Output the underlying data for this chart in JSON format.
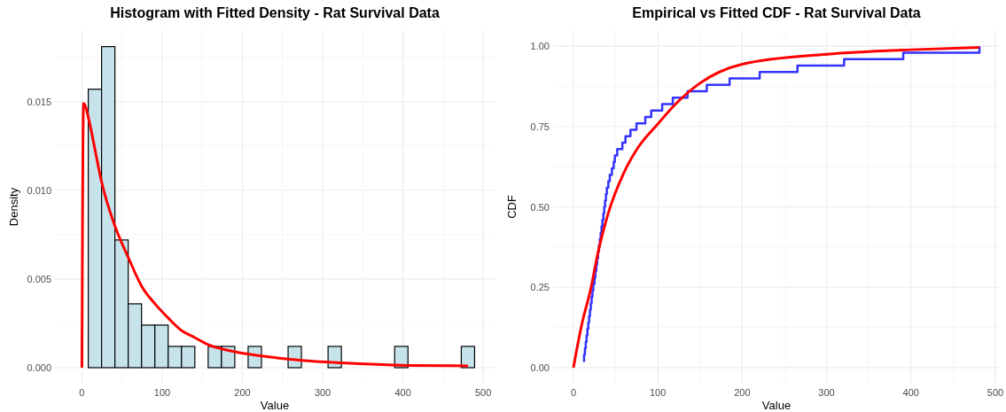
{
  "chart_data": [
    {
      "type": "histogram",
      "title": "Histogram with Fitted Density - Rat Survival Data",
      "xlabel": "Value",
      "ylabel": "Density",
      "grid": true,
      "xlim": [
        -33.6,
        514.2
      ],
      "ylim": [
        -0.0009,
        0.01903
      ],
      "xticks": [
        0,
        100,
        200,
        300,
        400,
        500
      ],
      "yticks": [
        {
          "value": 0,
          "label": "0.000"
        },
        {
          "value": 0.005,
          "label": "0.005"
        },
        {
          "value": 0.01,
          "label": "0.010"
        },
        {
          "value": 0.015,
          "label": "0.015"
        }
      ],
      "series": [
        {
          "color": "#c6e2eb",
          "bins": [
            -8.7,
            7.9,
            24.5,
            41.1,
            57.7,
            74.3,
            90.9,
            107.5,
            124.1,
            140.7,
            157.3,
            173.9,
            190.5,
            207.1,
            223.7,
            240.3,
            256.9,
            273.5,
            290.1,
            306.7,
            323.3,
            339.9,
            356.5,
            373.1,
            389.7,
            406.3,
            422.9,
            439.5,
            456.1,
            472.7,
            489.3
          ],
          "values": [
            0,
            0.0157,
            0.0181,
            0.0072,
            0.0036,
            0.0024,
            0.0024,
            0.0012,
            0.0012,
            0,
            0.0012,
            0.0012,
            0,
            0.0012,
            0,
            0,
            0.0012,
            0,
            0,
            0.0012,
            0,
            0,
            0,
            0,
            0.0012,
            0,
            0,
            0,
            0,
            0.0012
          ]
        },
        {
          "type": "line",
          "color": "#ff0000",
          "x": [
            0,
            2,
            10,
            16.7,
            24.4,
            41,
            57.9,
            74.4,
            91,
            107.5,
            124,
            140.6,
            157,
            190.6,
            224,
            273.6,
            323.6,
            406,
            481
          ],
          "values": [
            0,
            0.0149,
            0.0137,
            0.0122,
            0.0105,
            0.008,
            0.0062,
            0.0046,
            0.0036,
            0.0028,
            0.0021,
            0.0017,
            0.0013,
            0.0009,
            0.00066,
            0.00041,
            0.00027,
            0.00013,
            0.0001
          ]
        }
      ]
    },
    {
      "type": "step",
      "title": "Empirical vs Fitted CDF - Rat Survival Data",
      "xlabel": "Value",
      "ylabel": "CDF",
      "grid": true,
      "xlim": [
        -24.1,
        505.3
      ],
      "ylim": [
        -0.05,
        1.05
      ],
      "xticks": [
        0,
        100,
        200,
        300,
        400,
        500
      ],
      "yticks": [
        {
          "value": 0,
          "label": "0.00"
        },
        {
          "value": 0.25,
          "label": "0.25"
        },
        {
          "value": 0.5,
          "label": "0.50"
        },
        {
          "value": 0.75,
          "label": "0.75"
        },
        {
          "value": 1,
          "label": "1.00"
        }
      ],
      "series": [
        {
          "color": "#3333ff",
          "x": [
            11.6,
            12.6,
            13.6,
            14.6,
            15.6,
            16.6,
            17.6,
            18.6,
            19.6,
            20.6,
            21.6,
            22.6,
            23.6,
            25.0,
            26.0,
            27.1,
            28.1,
            29.2,
            30.2,
            31.3,
            32.3,
            33.4,
            34.4,
            35.5,
            36.5,
            37.5,
            38.6,
            39.6,
            41.4,
            43.1,
            45.6,
            47.7,
            49.1,
            51.9,
            58.0,
            61.7,
            67.6,
            74.7,
            85.2,
            92.2,
            105.2,
            117.8,
            135.3,
            158.1,
            185.1,
            220.8,
            265.5,
            320.8,
            390.9,
            481.2
          ],
          "values": [
            0.02,
            0.04,
            0.06,
            0.08,
            0.1,
            0.12,
            0.14,
            0.16,
            0.18,
            0.2,
            0.22,
            0.24,
            0.26,
            0.28,
            0.3,
            0.32,
            0.34,
            0.36,
            0.38,
            0.4,
            0.42,
            0.44,
            0.46,
            0.48,
            0.5,
            0.52,
            0.54,
            0.56,
            0.58,
            0.6,
            0.62,
            0.64,
            0.66,
            0.68,
            0.7,
            0.72,
            0.74,
            0.76,
            0.78,
            0.8,
            0.82,
            0.84,
            0.86,
            0.88,
            0.9,
            0.92,
            0.94,
            0.96,
            0.98,
            1.0
          ]
        },
        {
          "type": "line",
          "color": "#ff0000",
          "x": [
            0,
            10,
            20.3,
            29.1,
            41.4,
            58.9,
            76.4,
            100,
            120,
            150,
            200,
            300,
            400,
            481
          ],
          "values": [
            0,
            0.135,
            0.242,
            0.357,
            0.481,
            0.601,
            0.684,
            0.758,
            0.817,
            0.885,
            0.944,
            0.975,
            0.989,
            0.996
          ]
        }
      ]
    }
  ]
}
